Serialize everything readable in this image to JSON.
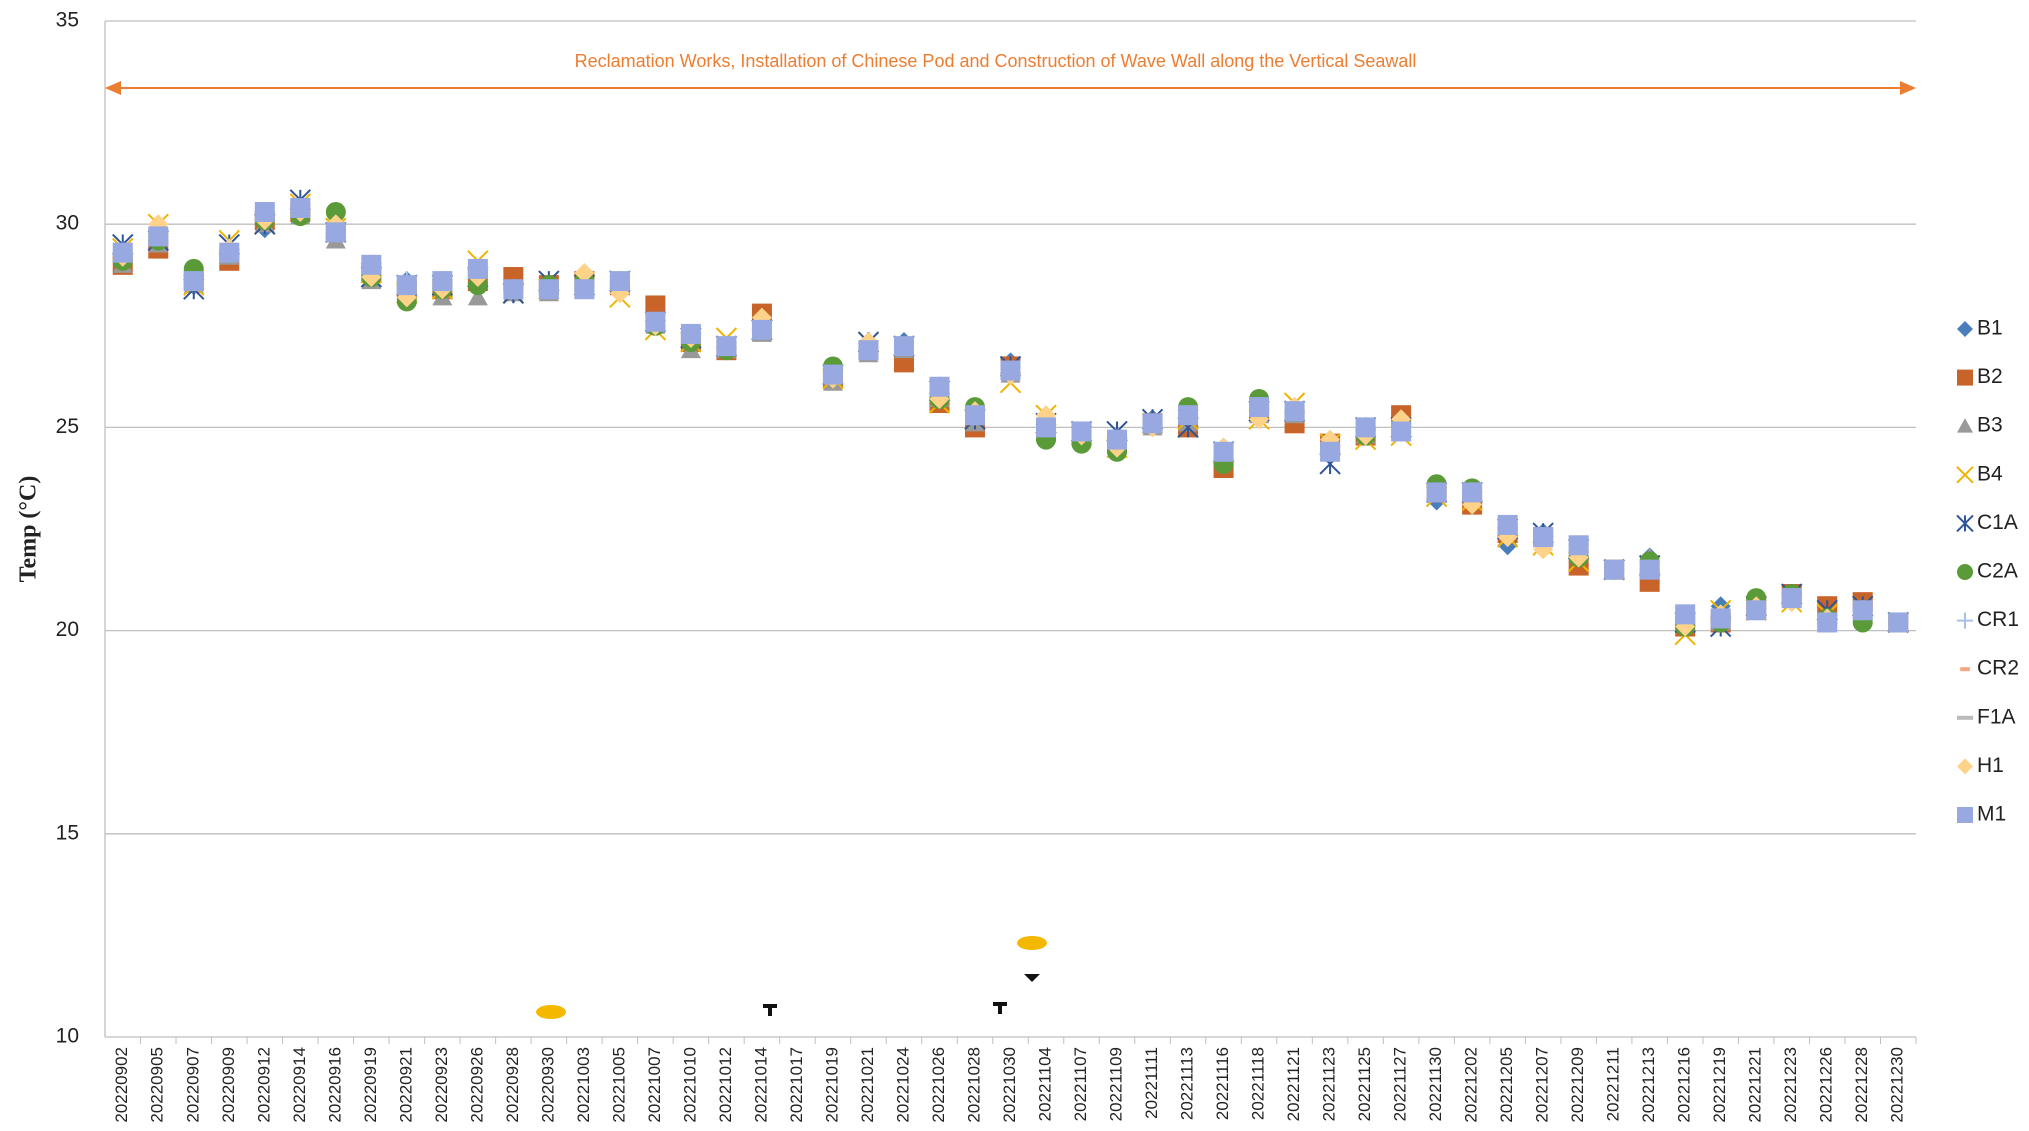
{
  "chart_data": {
    "type": "scatter",
    "y_label": "Temp (°C)",
    "annotation": "Reclamation Works, Installation of Chinese Pod and Construction of Wave Wall along the Vertical Seawall",
    "annotation_color": "#ed7d31",
    "ylim": [
      10,
      35
    ],
    "yticks": [
      10,
      15,
      20,
      25,
      30,
      35
    ],
    "grid": true,
    "legend": "right",
    "categories": [
      "20220902",
      "20220905",
      "20220907",
      "20220909",
      "20220912",
      "20220914",
      "20220916",
      "20220919",
      "20220921",
      "20220923",
      "20220926",
      "20220928",
      "20220930",
      "20221003",
      "20221005",
      "20221007",
      "20221010",
      "20221012",
      "20221014",
      "20221017",
      "20221019",
      "20221021",
      "20221024",
      "20221026",
      "20221028",
      "20221030",
      "20221104",
      "20221107",
      "20221109",
      "20221111",
      "20221113",
      "20221116",
      "20221118",
      "20221121",
      "20221123",
      "20221125",
      "20221127",
      "20221130",
      "20221202",
      "20221205",
      "20221207",
      "20221209",
      "20221211",
      "20221213",
      "20221216",
      "20221219",
      "20221221",
      "20221223",
      "20221226",
      "20221228",
      "20221230"
    ],
    "series": [
      {
        "name": "B1",
        "color": "#4a7ebb",
        "marker": "diamond",
        "values": [
          29.2,
          29.6,
          28.5,
          29.4,
          29.9,
          30.4,
          29.7,
          28.9,
          28.6,
          28.5,
          28.8,
          28.3,
          28.4,
          28.5,
          28.6,
          27.5,
          27.3,
          27.0,
          27.4,
          null,
          26.2,
          27.1,
          27.1,
          26.0,
          25.2,
          26.6,
          25.1,
          24.9,
          24.6,
          25.2,
          25.4,
          24.5,
          25.4,
          25.5,
          24.5,
          25.0,
          25.1,
          23.2,
          23.5,
          22.1,
          22.4,
          22.0,
          21.5,
          21.8,
          20.3,
          20.6,
          20.6,
          20.9,
          20.4,
          20.6,
          20.2
        ]
      },
      {
        "name": "B2",
        "color": "#c8632a",
        "marker": "square",
        "values": [
          29.0,
          29.4,
          28.6,
          29.1,
          30.1,
          30.3,
          29.8,
          28.8,
          28.4,
          28.4,
          28.6,
          28.7,
          28.5,
          28.6,
          28.5,
          28.0,
          27.1,
          26.9,
          27.8,
          null,
          26.2,
          26.9,
          26.6,
          25.6,
          25.0,
          26.5,
          24.9,
          24.8,
          24.6,
          25.1,
          25.0,
          24.0,
          25.4,
          25.1,
          24.6,
          24.8,
          25.3,
          23.4,
          23.1,
          22.4,
          22.3,
          21.6,
          21.5,
          21.2,
          20.1,
          20.2,
          20.6,
          20.9,
          20.6,
          20.7,
          20.2
        ]
      },
      {
        "name": "B3",
        "color": "#999999",
        "marker": "triangle",
        "values": [
          29.0,
          29.5,
          28.5,
          29.2,
          30.0,
          30.2,
          29.6,
          28.6,
          28.3,
          28.2,
          28.2,
          28.3,
          28.3,
          28.4,
          28.5,
          27.5,
          26.9,
          26.9,
          27.3,
          null,
          26.1,
          26.8,
          26.9,
          25.7,
          25.1,
          26.3,
          24.9,
          24.8,
          24.6,
          25.0,
          25.1,
          24.3,
          25.3,
          25.3,
          24.4,
          24.8,
          24.9,
          23.5,
          23.5,
          22.5,
          22.3,
          21.9,
          21.5,
          21.8,
          20.2,
          20.2,
          20.5,
          20.8,
          20.3,
          20.5,
          20.2
        ]
      },
      {
        "name": "B4",
        "color": "#f0b400",
        "marker": "x",
        "values": [
          29.4,
          30.0,
          28.5,
          29.6,
          30.0,
          30.5,
          29.9,
          28.8,
          28.3,
          28.4,
          29.1,
          28.3,
          28.4,
          28.5,
          28.2,
          27.4,
          27.1,
          27.2,
          27.4,
          null,
          26.2,
          27.1,
          27.0,
          25.6,
          25.2,
          26.1,
          25.3,
          24.8,
          24.5,
          25.1,
          25.2,
          24.4,
          25.2,
          25.6,
          24.6,
          24.7,
          24.8,
          23.3,
          23.2,
          22.3,
          22.1,
          21.7,
          21.5,
          21.6,
          19.9,
          20.5,
          20.5,
          20.7,
          20.4,
          20.6,
          20.2
        ]
      },
      {
        "name": "C1A",
        "color": "#2e5597",
        "marker": "asterisk",
        "values": [
          29.5,
          29.6,
          28.4,
          29.5,
          30.0,
          30.6,
          29.8,
          28.7,
          28.5,
          28.5,
          28.7,
          28.3,
          28.6,
          28.5,
          28.6,
          27.6,
          27.2,
          27.0,
          27.4,
          null,
          26.3,
          27.1,
          27.0,
          25.9,
          25.2,
          26.5,
          25.1,
          24.9,
          24.9,
          25.2,
          25.0,
          24.4,
          25.4,
          25.4,
          24.1,
          25.0,
          25.0,
          23.4,
          23.4,
          22.5,
          22.4,
          22.0,
          21.5,
          21.6,
          20.2,
          20.1,
          20.6,
          20.9,
          20.5,
          20.6,
          20.2
        ]
      },
      {
        "name": "C2A",
        "color": "#5a9a38",
        "marker": "circle",
        "values": [
          29.1,
          29.6,
          28.9,
          29.3,
          30.1,
          30.2,
          30.3,
          28.7,
          28.1,
          28.4,
          28.5,
          28.4,
          28.5,
          28.6,
          28.5,
          27.5,
          27.1,
          26.9,
          27.4,
          null,
          26.5,
          26.9,
          27.0,
          25.7,
          25.5,
          26.4,
          24.7,
          24.6,
          24.4,
          25.1,
          25.5,
          24.1,
          25.7,
          25.4,
          24.5,
          24.8,
          25.1,
          23.6,
          23.5,
          22.5,
          22.3,
          21.8,
          21.5,
          21.7,
          20.1,
          20.2,
          20.8,
          20.9,
          20.3,
          20.2,
          20.2
        ]
      },
      {
        "name": "CR1",
        "color": "#a6c0e6",
        "marker": "plus",
        "values": [
          29.3,
          29.7,
          28.6,
          29.4,
          30.2,
          30.4,
          29.8,
          29.0,
          28.6,
          28.6,
          28.8,
          28.4,
          28.4,
          28.5,
          28.6,
          27.6,
          27.3,
          27.0,
          27.4,
          null,
          26.3,
          26.9,
          27.0,
          26.0,
          25.3,
          26.4,
          25.1,
          24.9,
          24.7,
          25.1,
          25.3,
          24.4,
          25.5,
          25.4,
          24.4,
          25.0,
          24.9,
          23.4,
          23.4,
          22.6,
          22.3,
          22.1,
          21.5,
          21.5,
          20.4,
          20.3,
          20.5,
          20.8,
          20.2,
          20.5,
          20.2
        ]
      },
      {
        "name": "CR2",
        "color": "#f4a582",
        "marker": "dash",
        "values": [
          29.2,
          29.6,
          28.6,
          29.3,
          30.2,
          30.3,
          29.8,
          28.9,
          28.5,
          28.5,
          28.7,
          28.4,
          28.4,
          28.5,
          28.6,
          27.6,
          27.2,
          27.0,
          27.5,
          null,
          26.3,
          26.9,
          27.0,
          25.9,
          25.2,
          26.4,
          25.0,
          24.9,
          24.7,
          25.1,
          25.2,
          24.3,
          25.4,
          25.3,
          24.5,
          24.9,
          24.9,
          23.4,
          23.3,
          22.5,
          22.2,
          22.0,
          21.5,
          21.5,
          20.3,
          20.3,
          20.5,
          20.8,
          20.3,
          20.5,
          20.2
        ]
      },
      {
        "name": "F1A",
        "color": "#bbbbbb",
        "marker": "line",
        "values": [
          29.3,
          29.7,
          28.6,
          29.3,
          30.3,
          30.4,
          29.7,
          29.0,
          28.5,
          28.6,
          28.9,
          28.4,
          28.4,
          28.4,
          28.6,
          27.6,
          27.3,
          27.0,
          27.4,
          null,
          26.3,
          26.9,
          27.0,
          26.0,
          25.3,
          26.4,
          25.0,
          24.9,
          24.7,
          25.1,
          25.3,
          24.4,
          25.5,
          25.4,
          24.4,
          25.0,
          24.9,
          23.4,
          23.4,
          22.6,
          22.3,
          22.1,
          21.5,
          21.5,
          20.4,
          20.3,
          20.5,
          20.8,
          20.2,
          20.5,
          20.2
        ]
      },
      {
        "name": "H1",
        "color": "#ffd28a",
        "marker": "diamond",
        "values": [
          29.2,
          30.0,
          28.6,
          29.4,
          30.1,
          30.3,
          30.0,
          28.7,
          28.2,
          28.4,
          28.7,
          28.4,
          28.4,
          28.8,
          28.3,
          27.5,
          27.2,
          27.0,
          27.7,
          null,
          26.2,
          27.1,
          27.0,
          25.7,
          25.4,
          26.3,
          25.3,
          24.8,
          24.5,
          25.0,
          25.3,
          24.5,
          25.2,
          25.5,
          24.7,
          24.8,
          25.2,
          23.4,
          23.1,
          22.3,
          22.0,
          21.8,
          21.5,
          21.5,
          20.1,
          20.4,
          20.6,
          20.7,
          20.3,
          20.5,
          20.2
        ]
      },
      {
        "name": "M1",
        "color": "#97a9e0",
        "marker": "square",
        "values": [
          29.3,
          29.7,
          28.6,
          29.3,
          30.3,
          30.4,
          29.8,
          29.0,
          28.5,
          28.6,
          28.9,
          28.4,
          28.4,
          28.4,
          28.6,
          27.6,
          27.3,
          27.0,
          27.4,
          null,
          26.3,
          26.9,
          27.0,
          26.0,
          25.3,
          26.4,
          25.0,
          24.9,
          24.7,
          25.1,
          25.3,
          24.4,
          25.5,
          25.4,
          24.4,
          25.0,
          24.9,
          23.4,
          23.4,
          22.6,
          22.3,
          22.1,
          21.5,
          21.5,
          20.4,
          20.3,
          20.5,
          20.8,
          20.2,
          20.5,
          20.2
        ]
      }
    ]
  }
}
